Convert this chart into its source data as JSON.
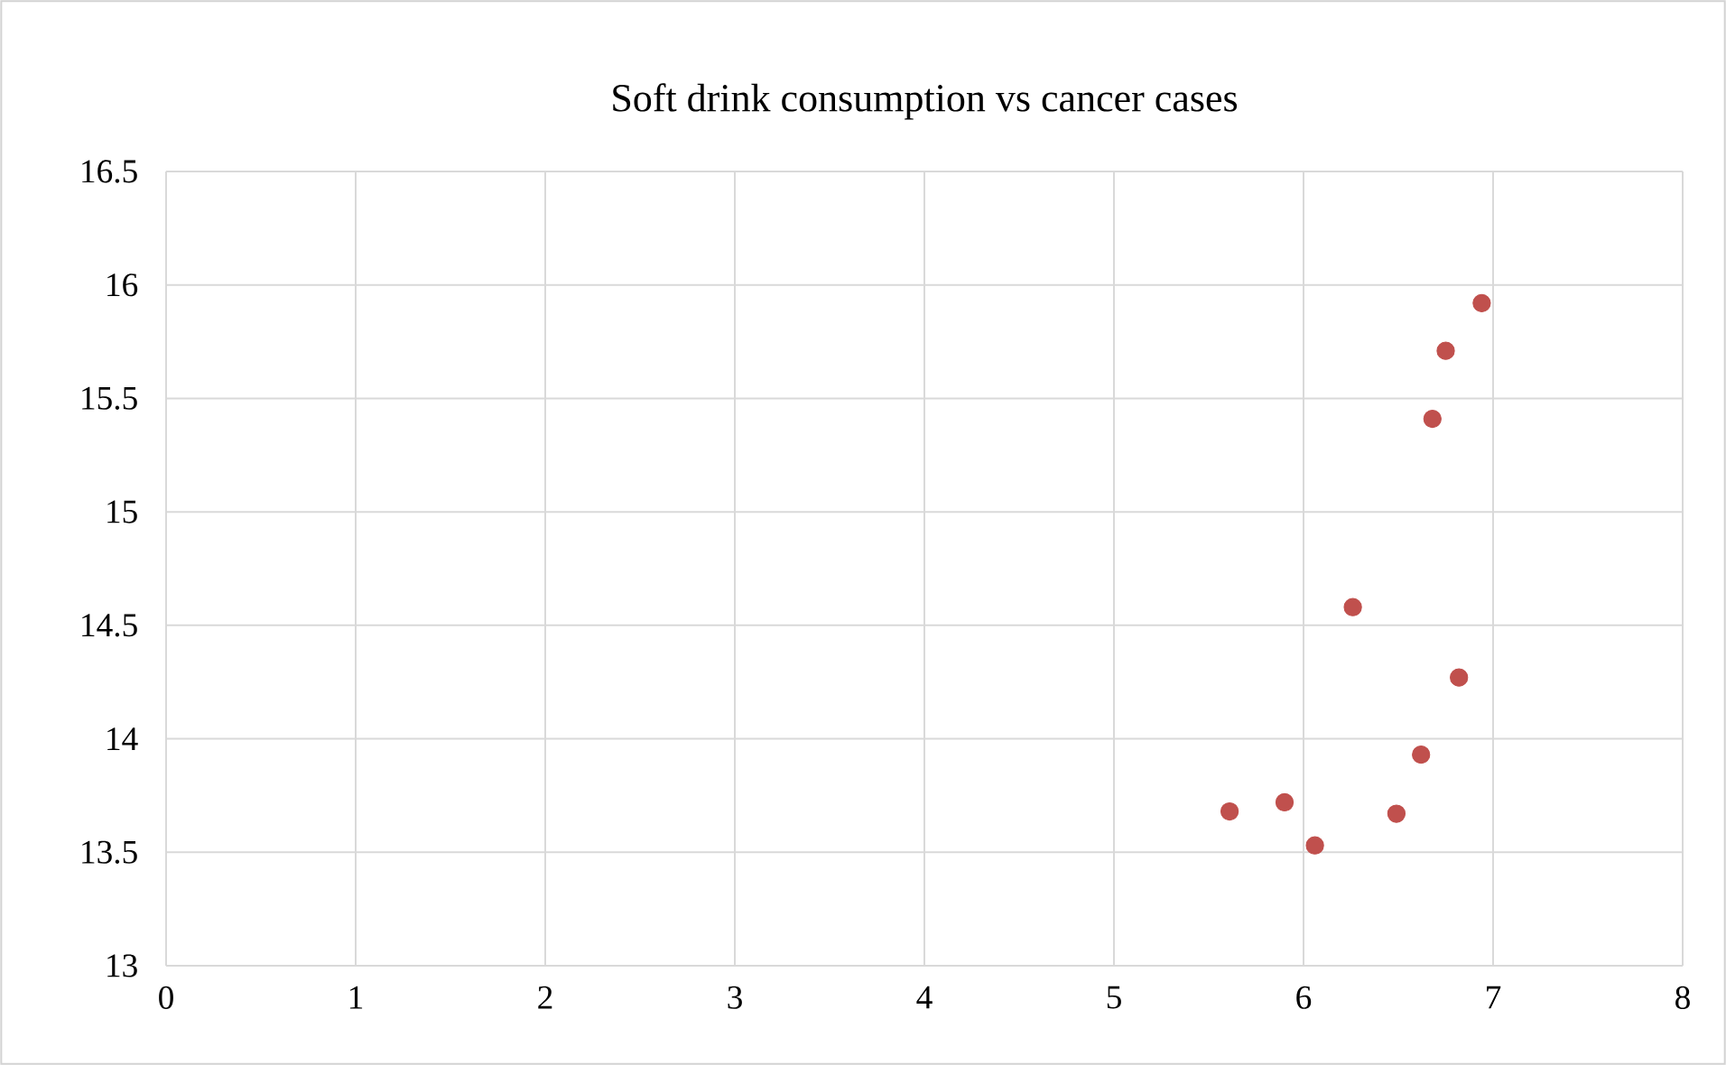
{
  "chart_data": {
    "type": "scatter",
    "title": "Soft drink consumption vs cancer cases",
    "series": [
      {
        "color": "#c0504d",
        "x": [
          5.61,
          5.9,
          6.06,
          6.49,
          6.62,
          6.82,
          6.26,
          6.68,
          6.75,
          6.94
        ],
        "values": [
          13.68,
          13.72,
          13.53,
          13.67,
          13.93,
          14.27,
          14.58,
          15.41,
          15.71,
          15.92
        ]
      }
    ],
    "xlim": [
      0,
      8
    ],
    "xticks": [
      0,
      1,
      2,
      3,
      4,
      5,
      6,
      7,
      8
    ],
    "ylim": [
      13,
      16.5
    ],
    "yticks": [
      13,
      13.5,
      14,
      14.5,
      15,
      15.5,
      16,
      16.5
    ],
    "grid": true,
    "marker": "circle"
  }
}
